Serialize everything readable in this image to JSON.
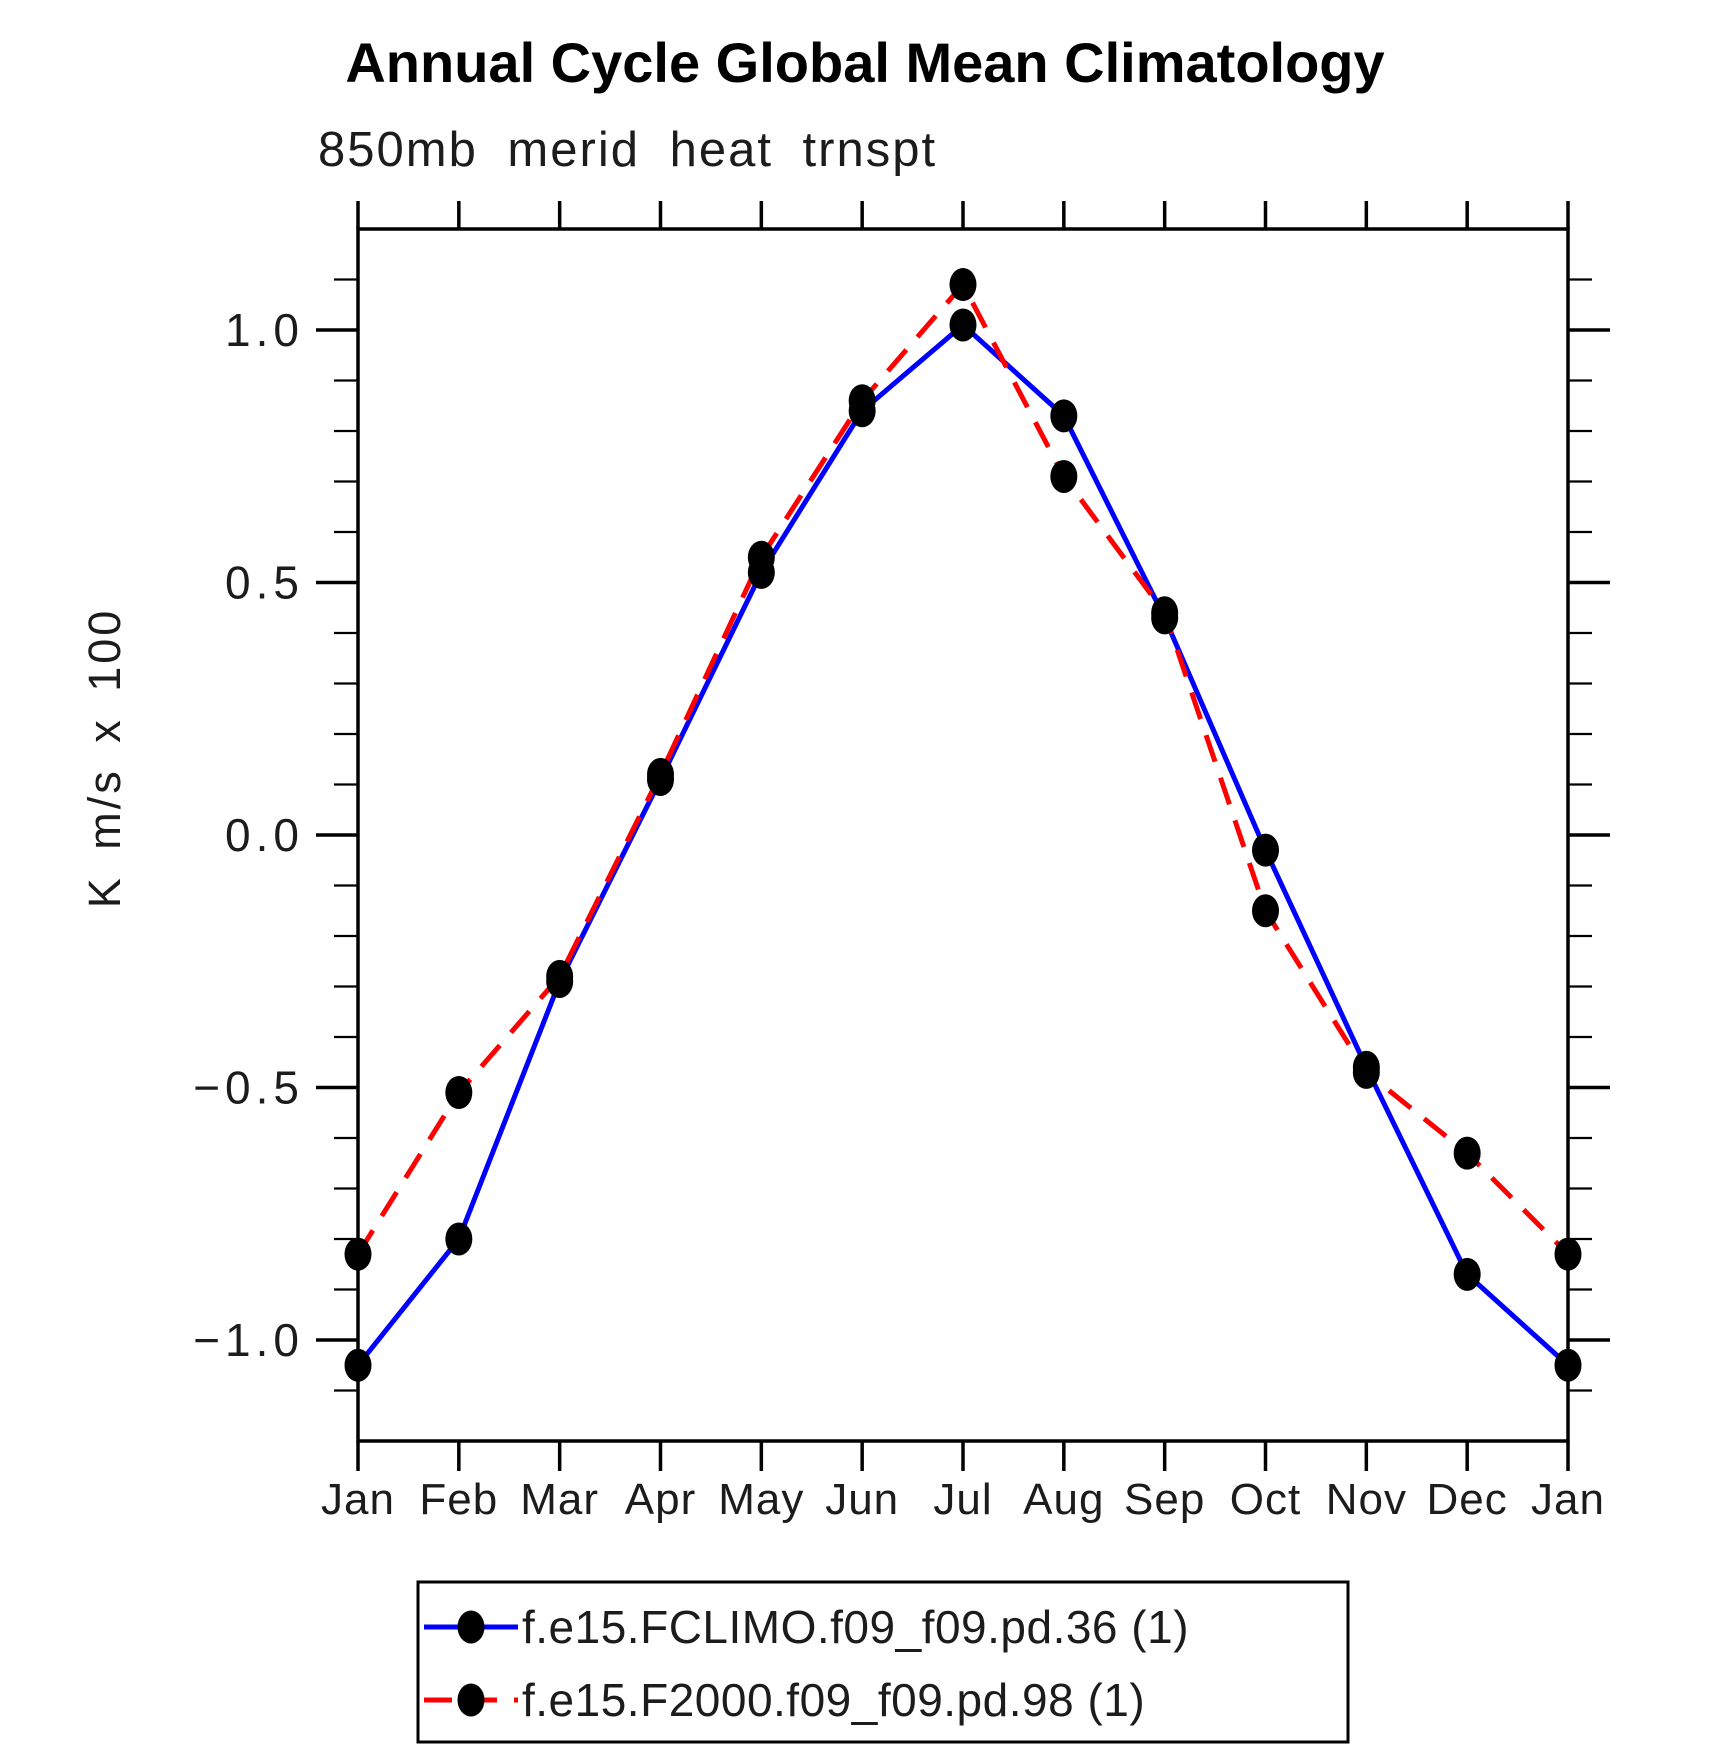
{
  "chart_data": {
    "type": "line",
    "title": "Annual Cycle Global Mean Climatology",
    "subtitle": "850mb merid heat trnspt",
    "xlabel": "",
    "ylabel": "K m/s x 100",
    "categories": [
      "Jan",
      "Feb",
      "Mar",
      "Apr",
      "May",
      "Jun",
      "Jul",
      "Aug",
      "Sep",
      "Oct",
      "Nov",
      "Dec",
      "Jan"
    ],
    "ylim": [
      -1.2,
      1.2
    ],
    "yticks_major": [
      {
        "value": 1.0,
        "label": "1.0"
      },
      {
        "value": 0.5,
        "label": "0.5"
      },
      {
        "value": 0.0,
        "label": "0.0"
      },
      {
        "value": -0.5,
        "label": "−0.5"
      },
      {
        "value": -1.0,
        "label": "−1.0"
      }
    ],
    "ytick_minor_step": 0.1,
    "grid": false,
    "legend_position": "bottom",
    "marker": {
      "shape": "filled-circle",
      "color": "#000000"
    },
    "axis_color": "#000000",
    "series": [
      {
        "name": "f.e15.FCLIMO.f09_f09.pd.36 (1)",
        "color": "#0000ff",
        "line_style": "solid",
        "values": [
          -1.05,
          -0.8,
          -0.29,
          0.11,
          0.52,
          0.84,
          1.01,
          0.83,
          0.43,
          -0.03,
          -0.46,
          -0.87,
          -1.05
        ]
      },
      {
        "name": "f.e15.F2000.f09_f09.pd.98 (1)",
        "color": "#ff0000",
        "line_style": "dashed",
        "values": [
          -0.83,
          -0.51,
          -0.28,
          0.12,
          0.55,
          0.86,
          1.09,
          0.71,
          0.44,
          -0.15,
          -0.47,
          -0.63,
          -0.83
        ]
      }
    ]
  }
}
